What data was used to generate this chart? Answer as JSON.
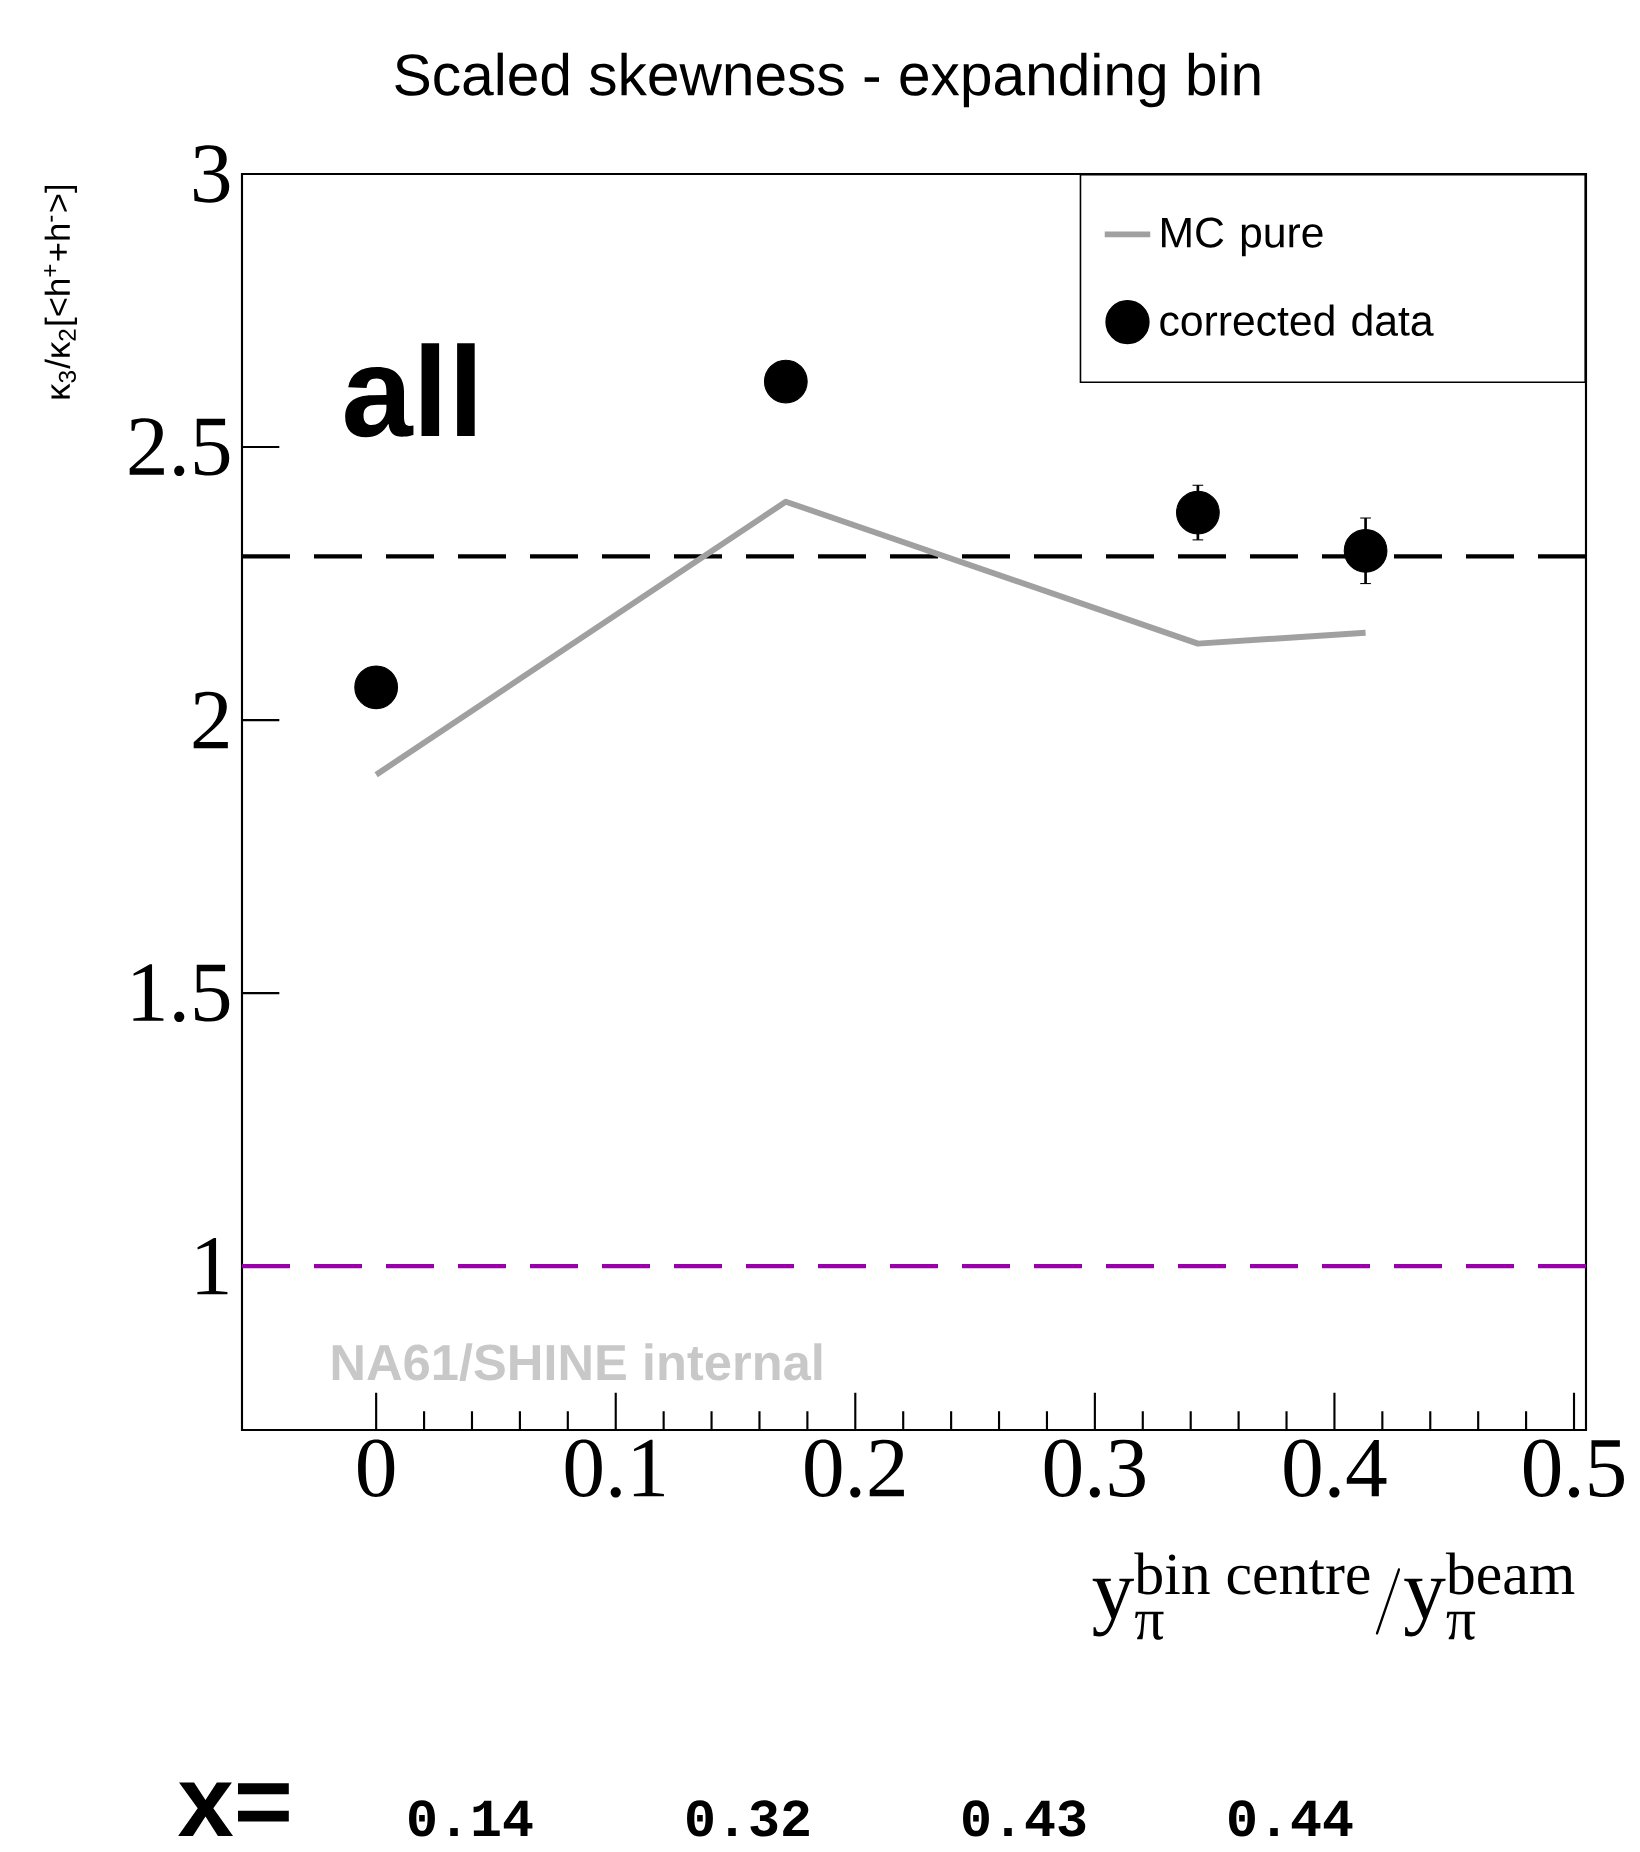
{
  "chart_data": {
    "type": "scatter",
    "title": "Scaled skewness - expanding bin",
    "xlabel": "\\text{y}_{\\text{π}}^{\\text{bin centre}}/\\text{y}_{\\text{π}}^{\\text{beam}}",
    "ylabel": "κ$_{3}$/κ$_{2}$[<h$^{+}$+h$^{-}$>]",
    "x": [
      0,
      0.171,
      0.343,
      0.413
    ],
    "series": [
      {
        "name": "MC pure",
        "type": "line",
        "color": "#a0a0a0",
        "values": [
          1.9,
          2.4,
          2.14,
          2.16
        ]
      },
      {
        "name": "corrected data",
        "color": "#000000",
        "values": [
          2.06,
          2.62,
          2.38,
          2.31
        ],
        "errors": [
          null,
          null,
          0.05,
          0.06
        ]
      }
    ],
    "xlim": [
      -0.056,
      0.505
    ],
    "xticks": [
      0,
      0.1,
      0.2,
      0.3,
      0.4,
      0.5
    ],
    "ylim": [
      0.7,
      3
    ],
    "yticks": [
      1,
      1.5,
      2,
      2.5,
      3
    ],
    "ref_lines": [
      {
        "axis": "y",
        "value": 2.3,
        "color": "#000000",
        "line_style": "dashed"
      },
      {
        "axis": "y",
        "value": 1,
        "color": "#9900aa",
        "line_style": "dashed"
      }
    ],
    "legend": "top right",
    "annotations": [
      "all",
      "NA61/SHINE internal",
      "x=",
      "0.14",
      "0.32",
      "0.43",
      "0.44"
    ]
  }
}
